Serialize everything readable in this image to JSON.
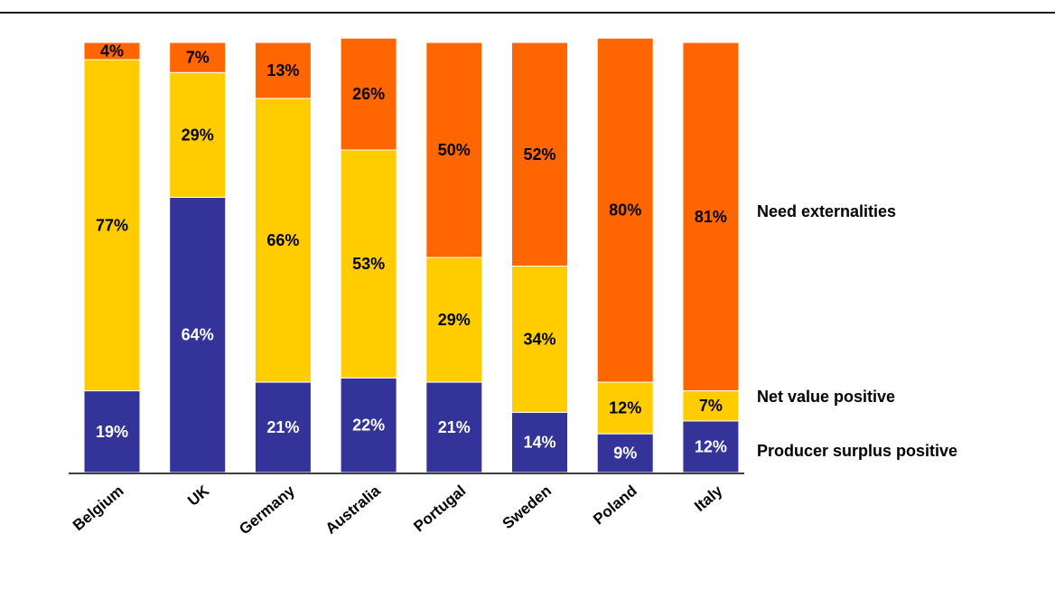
{
  "chart_data": {
    "type": "bar",
    "stacked": true,
    "categories": [
      "Belgium",
      "UK",
      "Germany",
      "Australia",
      "Portugal",
      "Sweden",
      "Poland",
      "Italy"
    ],
    "series": [
      {
        "name": "Producer surplus positive",
        "color": "#333399",
        "label_color": "#ffffff",
        "values": [
          19,
          64,
          21,
          22,
          21,
          14,
          9,
          12
        ],
        "labels": [
          "19%",
          "64%",
          "21%",
          "22%",
          "21%",
          "14%",
          "9%",
          "12%"
        ]
      },
      {
        "name": "Net value positive",
        "color": "#ffcc00",
        "label_color": "#000000",
        "values": [
          77,
          29,
          66,
          53,
          29,
          34,
          12,
          7
        ],
        "labels": [
          "77%",
          "29%",
          "66%",
          "53%",
          "29%",
          "34%",
          "12%",
          "7%"
        ]
      },
      {
        "name": "Need externalities",
        "color": "#ff6600",
        "label_color": "#000000",
        "values": [
          4,
          7,
          13,
          26,
          50,
          52,
          80,
          81
        ],
        "labels": [
          "4%",
          "7%",
          "13%",
          "26%",
          "50%",
          "52%",
          "80%",
          "81%"
        ]
      }
    ],
    "ylim": [
      0,
      100
    ],
    "grid": false,
    "legend": "right"
  }
}
